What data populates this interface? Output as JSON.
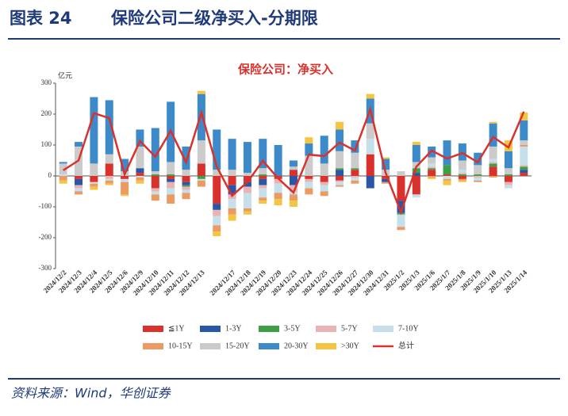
{
  "header": {
    "label": "图表 24",
    "title": "保险公司二级净买入-分期限"
  },
  "chart_data": {
    "type": "bar",
    "stacked": true,
    "title": "保险公司：净买入",
    "y_label": "亿元",
    "categories": [
      "2024/12/2",
      "2024/12/3",
      "2024/12/4",
      "2024/12/5",
      "2024/12/6",
      "2024/12/9",
      "2024/12/10",
      "2024/12/11",
      "2024/12/12",
      "2024/12/13",
      null,
      "2024/12/17",
      "2024/12/18",
      "2024/12/19",
      "2024/12/20",
      "2024/12/23",
      "2024/12/24",
      "2024/12/25",
      "2024/12/26",
      "2024/12/27",
      "2024/12/30",
      "2024/12/31",
      "2025/1/2",
      "2025/1/3",
      "2025/1/6",
      "2025/1/7",
      "2025/1/8",
      "2025/1/9",
      "2025/1/10",
      "2025/1/13",
      "2025/1/14"
    ],
    "ylim": [
      -300,
      300
    ],
    "yticks": [
      -300,
      -200,
      -100,
      0,
      100,
      200,
      300
    ],
    "series": [
      {
        "name": "≦1Y",
        "color": "#d9312b",
        "values": [
          0,
          -10,
          -20,
          40,
          -10,
          10,
          -40,
          -10,
          -20,
          40,
          -90,
          -30,
          -20,
          -10,
          -10,
          20,
          -10,
          -20,
          -15,
          20,
          70,
          -10,
          -80,
          -60,
          20,
          5,
          -10,
          0,
          30,
          -20,
          10
        ]
      },
      {
        "name": "1-3Y",
        "color": "#2a56a8",
        "values": [
          0,
          -20,
          0,
          0,
          0,
          15,
          0,
          -10,
          -10,
          0,
          -20,
          -30,
          -15,
          -20,
          0,
          -30,
          0,
          0,
          20,
          0,
          -40,
          -10,
          -40,
          10,
          0,
          0,
          0,
          0,
          0,
          0,
          10
        ]
      },
      {
        "name": "3-5Y",
        "color": "#3f9f46",
        "values": [
          0,
          0,
          0,
          0,
          0,
          0,
          5,
          5,
          -5,
          -10,
          0,
          0,
          0,
          5,
          0,
          0,
          0,
          0,
          5,
          5,
          0,
          0,
          -5,
          15,
          5,
          30,
          5,
          5,
          10,
          5,
          10
        ]
      },
      {
        "name": "5-7Y",
        "color": "#eab3b3",
        "values": [
          0,
          -10,
          0,
          -10,
          0,
          0,
          -10,
          -20,
          -10,
          0,
          -20,
          -15,
          -20,
          -10,
          -15,
          -20,
          -10,
          -10,
          -5,
          -5,
          0,
          0,
          0,
          0,
          5,
          0,
          5,
          -5,
          5,
          -10,
          5
        ]
      },
      {
        "name": "7-10Y",
        "color": "#c5e0ea",
        "values": [
          5,
          -10,
          -5,
          -5,
          -10,
          -5,
          -10,
          -20,
          -10,
          -5,
          -30,
          -30,
          -50,
          -30,
          -30,
          -10,
          -20,
          -20,
          -10,
          -10,
          50,
          0,
          -40,
          -10,
          10,
          -10,
          10,
          -10,
          10,
          -10,
          60
        ]
      },
      {
        "name": "10-15Y",
        "color": "#eb9a62",
        "values": [
          -15,
          -10,
          -10,
          -10,
          -40,
          -10,
          -20,
          -30,
          -20,
          -20,
          -20,
          -20,
          -10,
          -10,
          -20,
          -20,
          -20,
          -15,
          -5,
          -10,
          0,
          -5,
          -10,
          0,
          -5,
          -5,
          -5,
          -5,
          -5,
          0,
          5
        ]
      },
      {
        "name": "15-20Y",
        "color": "#cbcbcb",
        "values": [
          35,
          95,
          40,
          30,
          15,
          70,
          10,
          40,
          20,
          75,
          20,
          20,
          10,
          20,
          0,
          10,
          65,
          40,
          55,
          50,
          50,
          20,
          15,
          20,
          20,
          0,
          30,
          30,
          40,
          20,
          15
        ]
      },
      {
        "name": "20-30Y",
        "color": "#3d8acb",
        "values": [
          5,
          15,
          215,
          175,
          40,
          55,
          140,
          195,
          75,
          150,
          130,
          100,
          100,
          95,
          100,
          20,
          40,
          90,
          70,
          40,
          80,
          35,
          0,
          55,
          35,
          80,
          55,
          40,
          75,
          55,
          65
        ]
      },
      {
        "name": ">30Y",
        "color": "#f5c440",
        "values": [
          -10,
          0,
          -10,
          -5,
          -5,
          -10,
          0,
          0,
          0,
          10,
          -15,
          -20,
          -10,
          -10,
          -20,
          -20,
          20,
          0,
          25,
          0,
          15,
          5,
          0,
          10,
          -5,
          -15,
          -5,
          0,
          5,
          35,
          25
        ]
      },
      {
        "name": "总计",
        "type": "line",
        "color": "#d9312b",
        "values": [
          18,
          50,
          203,
          187,
          5,
          113,
          62,
          146,
          44,
          205,
          30,
          -64,
          -20,
          49,
          -8,
          -54,
          69,
          64,
          108,
          82,
          215,
          10,
          -118,
          30,
          82,
          56,
          74,
          44,
          126,
          92,
          208
        ]
      }
    ]
  },
  "source": "资料来源：Wind，华创证券"
}
